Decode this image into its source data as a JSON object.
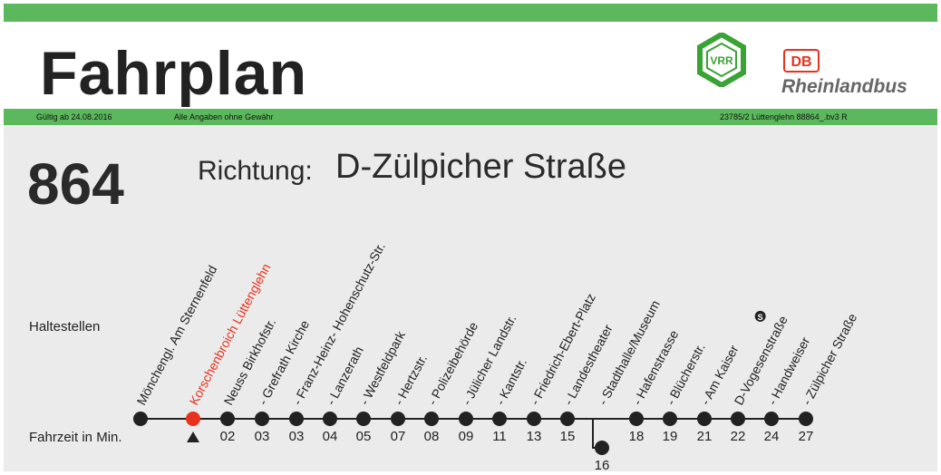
{
  "header": {
    "title": "Fahrplan",
    "vrr_logo_text": "VRR",
    "db_logo_text": "DB",
    "operator": "Rheinlandbus"
  },
  "infobar": {
    "valid_from": "Gültig ab 24.08.2016",
    "disclaimer": "Alle Angaben ohne Gewähr",
    "code": "23785/2 Lüttenglehn 88864_.bv3 R"
  },
  "line": {
    "number": "864",
    "direction_label": "Richtung:",
    "direction": "D-Zülpicher Straße"
  },
  "labels": {
    "stops": "Haltestellen",
    "travel_time": "Fahrzeit in Min."
  },
  "colors": {
    "green": "#5cb85c",
    "current_stop": "#e8321e",
    "panel": "#ebebeb"
  },
  "current_stop_marker": "triangle-up-icon",
  "stops": [
    {
      "name": "Mönchengl. Am Sternenfeld",
      "time": "",
      "prefix": ""
    },
    {
      "name": "Korschenbroich Lüttenglehn",
      "time": "",
      "prefix": "",
      "current": true
    },
    {
      "name": "Neuss Birkhofstr.",
      "time": "02",
      "prefix": ""
    },
    {
      "name": "Grefrath Kirche",
      "time": "03",
      "prefix": "- "
    },
    {
      "name": "Franz-Heinz- Hohenschutz-Str.",
      "time": "03",
      "prefix": "- "
    },
    {
      "name": "Lanzerath",
      "time": "04",
      "prefix": "- "
    },
    {
      "name": "Westfeldpark",
      "time": "05",
      "prefix": "- "
    },
    {
      "name": "Hertzstr.",
      "time": "07",
      "prefix": "- "
    },
    {
      "name": "Polizeibehörde",
      "time": "08",
      "prefix": "- "
    },
    {
      "name": "Jülicher Landstr.",
      "time": "09",
      "prefix": "- "
    },
    {
      "name": "Kantstr.",
      "time": "11",
      "prefix": "- "
    },
    {
      "name": "Friedrich-Ebert-Platz",
      "time": "13",
      "prefix": "- "
    },
    {
      "name": "Landestheater",
      "time": "15",
      "prefix": "- "
    },
    {
      "name": "Stadthalle/Museum",
      "time": "16",
      "prefix": "- ",
      "branch": true
    },
    {
      "name": "Hafenstrasse",
      "time": "18",
      "prefix": "- "
    },
    {
      "name": "Blücherstr.",
      "time": "19",
      "prefix": "- "
    },
    {
      "name": "Am Kaiser",
      "time": "21",
      "prefix": "- ",
      "sbahn": true
    },
    {
      "name": "D-Vogesenstraße",
      "time": "22",
      "prefix": ""
    },
    {
      "name": "Handweiser",
      "time": "24",
      "prefix": "- "
    },
    {
      "name": "Zülpicher Straße",
      "time": "27",
      "prefix": "- "
    }
  ]
}
